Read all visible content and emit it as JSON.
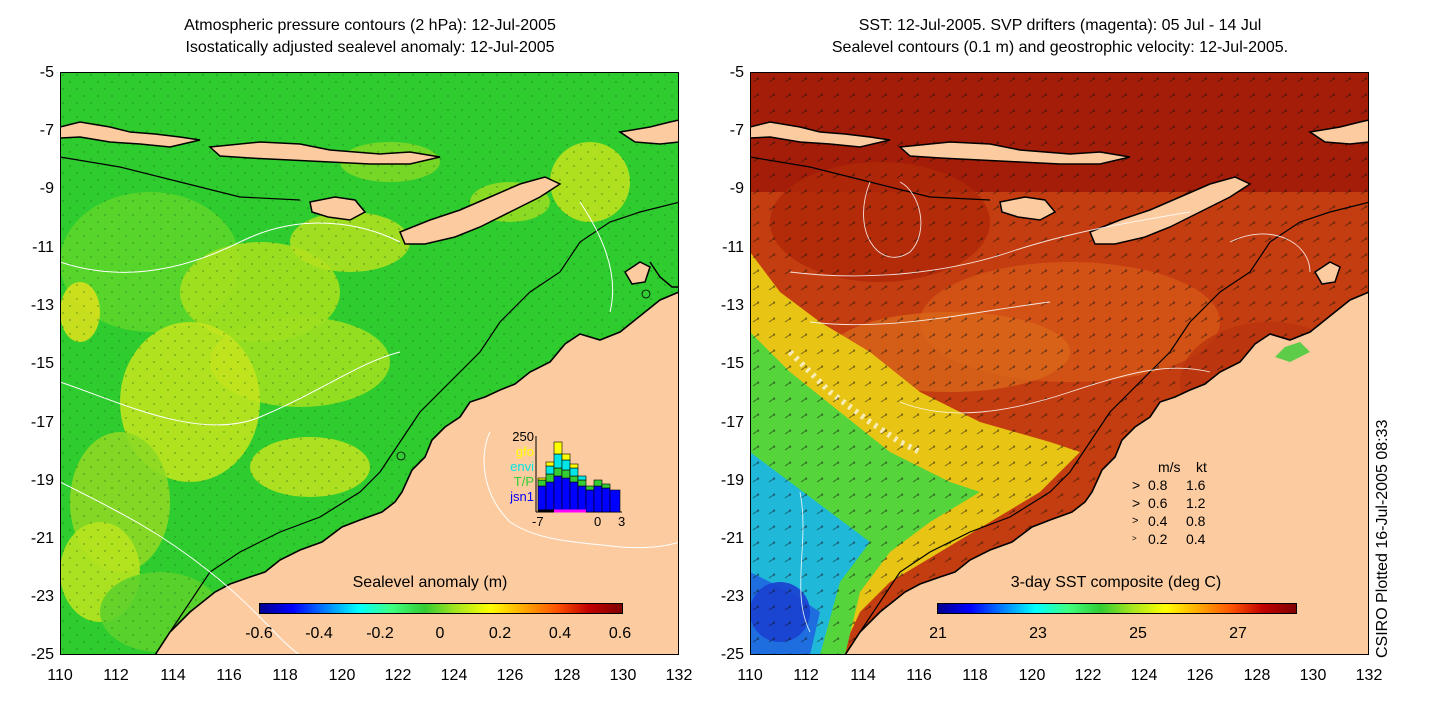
{
  "left_panel": {
    "title_line1": "Atmospheric pressure contours (2 hPa): 12-Jul-2005",
    "title_line2": "Isostatically adjusted sealevel anomaly: 12-Jul-2005",
    "colorbar_label": "Sealevel anomaly (m)",
    "colorbar_ticks": [
      "-0.6",
      "-0.4",
      "-0.2",
      "0",
      "0.2",
      "0.4",
      "0.6"
    ],
    "inset": {
      "ymax_label": "250",
      "legend": [
        {
          "name": "gfo",
          "color": "#ffff00"
        },
        {
          "name": "envi",
          "color": "#00e5e5"
        },
        {
          "name": "T/P",
          "color": "#33cc33"
        },
        {
          "name": "jsn1",
          "color": "#0000ff"
        }
      ],
      "x_ticks": [
        "-7",
        "0",
        "3"
      ]
    }
  },
  "right_panel": {
    "title_line1": "SST: 12-Jul-2005. SVP drifters (magenta): 05 Jul - 14 Jul",
    "title_line2": "Sealevel contours (0.1 m) and geostrophic velocity: 12-Jul-2005.",
    "colorbar_label": "3-day SST composite (deg C)",
    "colorbar_ticks": [
      "21",
      "23",
      "25",
      "27"
    ],
    "velocity_legend": {
      "header_ms": "m/s",
      "header_kt": "kt",
      "rows": [
        {
          "ms": "0.8",
          "kt": "1.6"
        },
        {
          "ms": "0.6",
          "kt": "1.2"
        },
        {
          "ms": "0.4",
          "kt": "0.8"
        },
        {
          "ms": "0.2",
          "kt": "0.4"
        }
      ]
    }
  },
  "axes": {
    "y_ticks": [
      "-5",
      "-7",
      "-9",
      "-11",
      "-13",
      "-15",
      "-17",
      "-19",
      "-21",
      "-23",
      "-25"
    ],
    "x_ticks": [
      "110",
      "112",
      "114",
      "116",
      "118",
      "120",
      "122",
      "124",
      "126",
      "128",
      "130",
      "132"
    ],
    "lat_range": [
      -25,
      -5
    ],
    "lon_range": [
      110,
      132
    ]
  },
  "credit": "CSIRO Plotted 16-Jul-2005 08:33",
  "colors": {
    "land": "#fccca0",
    "ocean_left": "#33cc33",
    "ocean_right": "#c43a10"
  }
}
